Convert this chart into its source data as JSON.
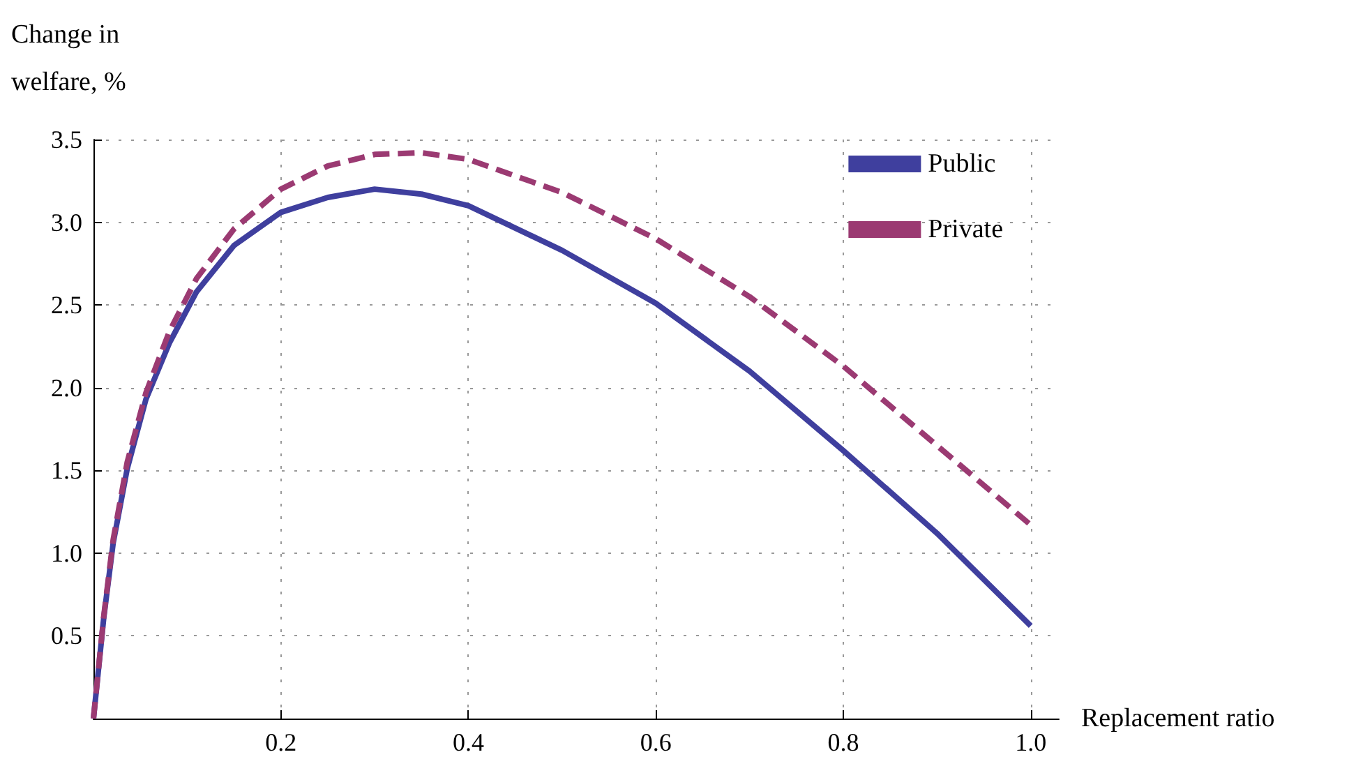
{
  "chart_data": {
    "type": "line",
    "xlabel": "Replacement ratio",
    "ylabel": "Change in welfare, %",
    "xlim": [
      0,
      1.03
    ],
    "ylim": [
      0,
      3.5
    ],
    "xticks": [
      0.2,
      0.4,
      0.6,
      0.8,
      {
        "value": 1,
        "label": "1.0"
      }
    ],
    "yticks": [
      0.5,
      {
        "value": 1,
        "label": "1.0"
      },
      1.5,
      {
        "value": 2,
        "label": "2.0"
      },
      2.5,
      {
        "value": 3,
        "label": "3.0"
      },
      3.5
    ],
    "grid": true,
    "legend": "top right",
    "marker": "none",
    "series": [
      {
        "name": "Public",
        "color": "#3f3f9e",
        "line_style": "solid",
        "x": [
          0,
          0.011,
          0.021,
          0.036,
          0.056,
          0.081,
          0.11,
          0.15,
          0.2,
          0.25,
          0.3,
          0.35,
          0.4,
          0.5,
          0.6,
          0.7,
          0.8,
          0.9,
          1.0
        ],
        "values": [
          0,
          0.61,
          1.06,
          1.51,
          1.93,
          2.27,
          2.58,
          2.86,
          3.06,
          3.15,
          3.2,
          3.17,
          3.1,
          2.83,
          2.51,
          2.1,
          1.62,
          1.12,
          0.56
        ]
      },
      {
        "name": "Private",
        "color": "#9b3a72",
        "line_style": "dashed",
        "x": [
          0,
          0.011,
          0.021,
          0.036,
          0.056,
          0.081,
          0.11,
          0.15,
          0.2,
          0.25,
          0.3,
          0.35,
          0.4,
          0.5,
          0.6,
          0.7,
          0.8,
          0.9,
          1.0
        ],
        "values": [
          0,
          0.62,
          1.08,
          1.55,
          1.97,
          2.34,
          2.66,
          2.96,
          3.2,
          3.34,
          3.41,
          3.42,
          3.38,
          3.18,
          2.9,
          2.55,
          2.13,
          1.65,
          1.17
        ]
      }
    ]
  }
}
